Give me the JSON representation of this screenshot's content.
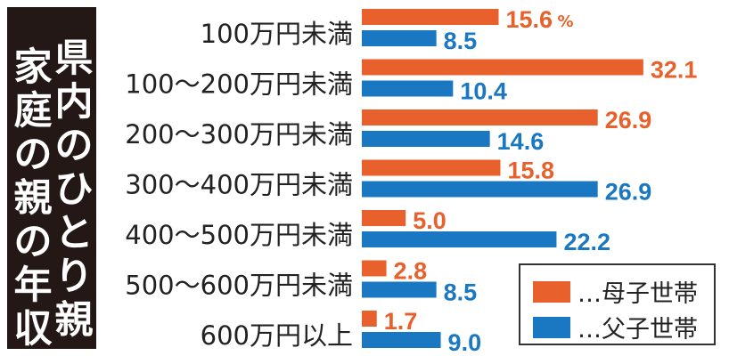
{
  "title": {
    "line1": "県内のひとり親",
    "line2": "家庭の親の年収"
  },
  "chart_data": {
    "type": "bar",
    "orientation": "horizontal",
    "title": "県内のひとり親家庭の親の年収",
    "unit_label": "%",
    "categories": [
      "100万円未満",
      "100～200万円未満",
      "200～300万円未満",
      "300～400万円未満",
      "400～500万円未満",
      "500～600万円未満",
      "600万円以上"
    ],
    "series": [
      {
        "name": "…母子世帯",
        "color": "#e8612c",
        "values": [
          15.6,
          32.1,
          26.9,
          15.8,
          5.0,
          2.8,
          1.7
        ],
        "labels": [
          "15.6",
          "32.1",
          "26.9",
          "15.8",
          "5.0",
          "2.8",
          "1.7"
        ]
      },
      {
        "name": "…父子世帯",
        "color": "#1a78c2",
        "values": [
          8.5,
          10.4,
          14.6,
          26.9,
          22.2,
          8.5,
          9.0
        ],
        "labels": [
          "8.5",
          "10.4",
          "14.6",
          "26.9",
          "22.2",
          "8.5",
          "9.0"
        ]
      }
    ],
    "xlim": [
      0,
      35
    ],
    "grid": false,
    "legend_position": "bottom-right"
  }
}
